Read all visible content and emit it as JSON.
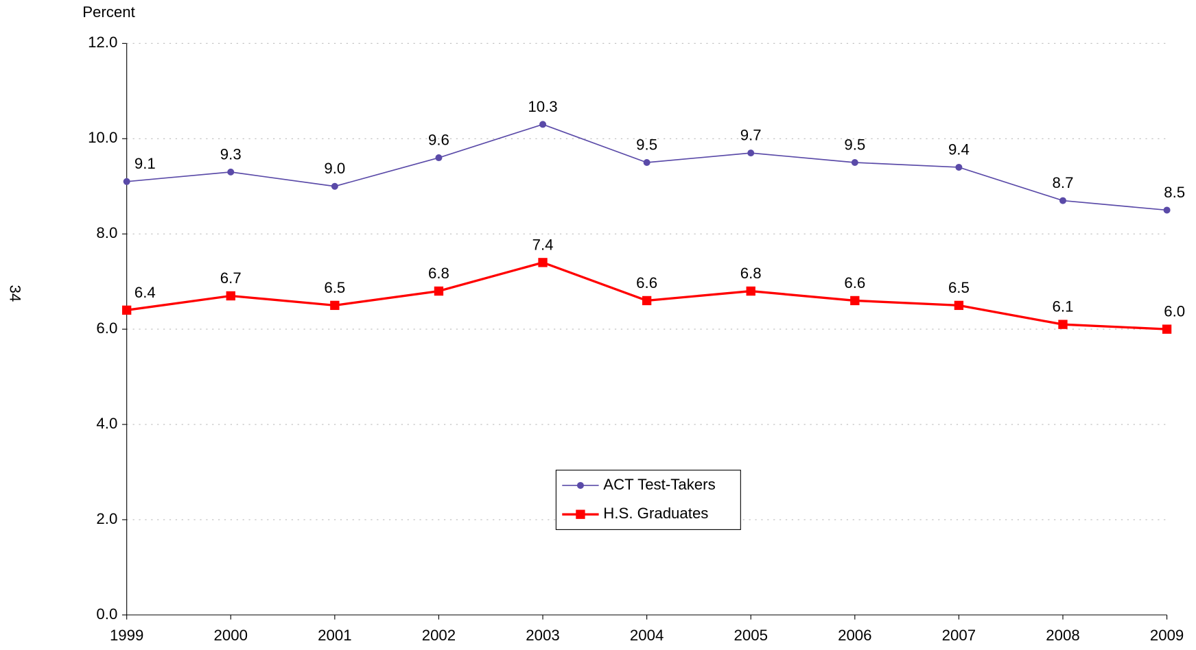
{
  "page_number": "34",
  "chart_data": {
    "type": "line",
    "y_label": "Percent",
    "categories": [
      "1999",
      "2000",
      "2001",
      "2002",
      "2003",
      "2004",
      "2005",
      "2006",
      "2007",
      "2008",
      "2009"
    ],
    "ylim": [
      0,
      12
    ],
    "yticks": [
      {
        "value": 0,
        "label": "0.0"
      },
      {
        "value": 2,
        "label": "2.0"
      },
      {
        "value": 4,
        "label": "4.0"
      },
      {
        "value": 6,
        "label": "6.0"
      },
      {
        "value": 8,
        "label": "8.0"
      },
      {
        "value": 10,
        "label": "10.0"
      },
      {
        "value": 12,
        "label": "12.0"
      }
    ],
    "grid": true,
    "legend": "center",
    "series": [
      {
        "name": "ACT Test-Takers",
        "color": "#5a4aa8",
        "marker": "circle",
        "values": [
          9.1,
          9.3,
          9.0,
          9.6,
          10.3,
          9.5,
          9.7,
          9.5,
          9.4,
          8.7,
          8.5
        ],
        "value_labels": [
          "9.1",
          "9.3",
          "9.0",
          "9.6",
          "10.3",
          "9.5",
          "9.7",
          "9.5",
          "9.4",
          "8.7",
          "8.5"
        ]
      },
      {
        "name": "H.S. Graduates",
        "color": "#ff0000",
        "marker": "square",
        "values": [
          6.4,
          6.7,
          6.5,
          6.8,
          7.4,
          6.6,
          6.8,
          6.6,
          6.5,
          6.1,
          6.0
        ],
        "value_labels": [
          "6.4",
          "6.7",
          "6.5",
          "6.8",
          "7.4",
          "6.6",
          "6.8",
          "6.6",
          "6.5",
          "6.1",
          "6.0"
        ]
      }
    ]
  }
}
